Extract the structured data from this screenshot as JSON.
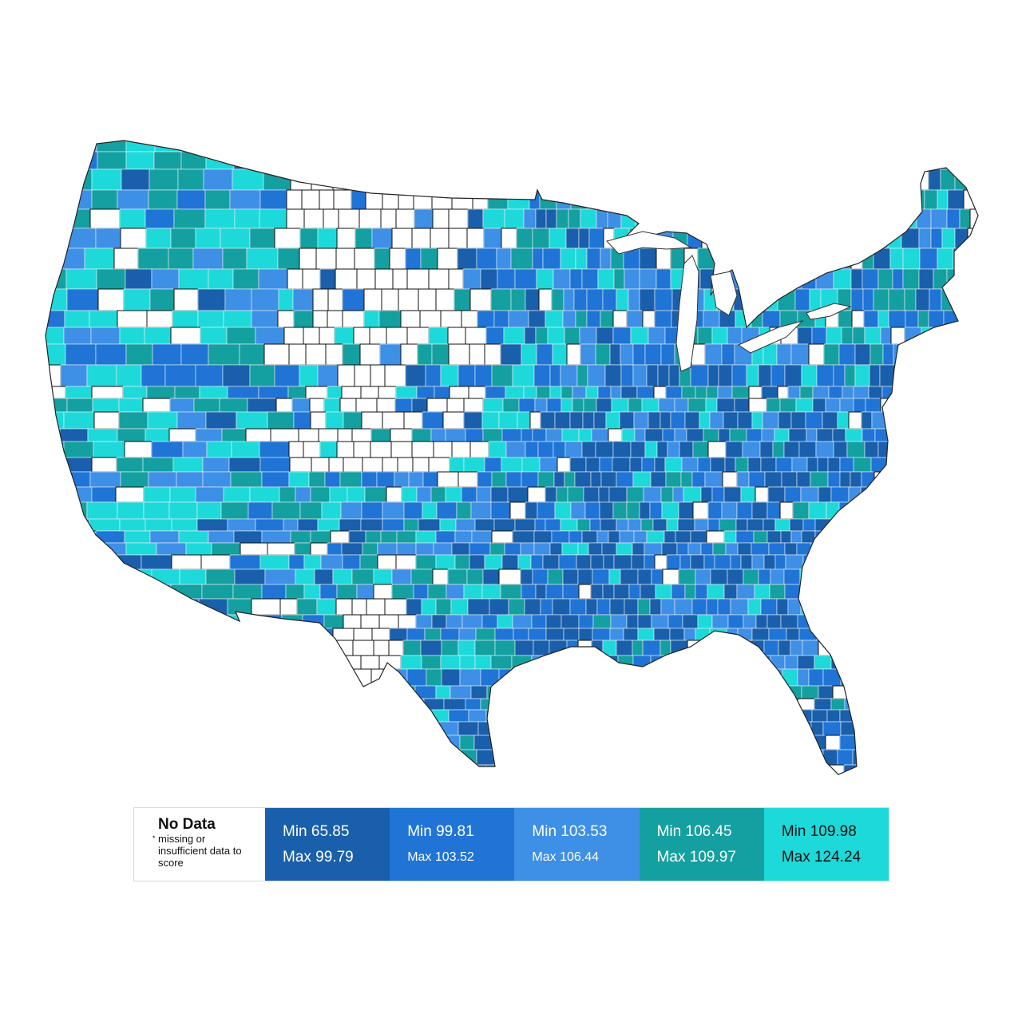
{
  "legend": {
    "no_data": {
      "title": "No Data",
      "marker": "*",
      "note": "missing or insufficient data to score",
      "color": "#ffffff"
    },
    "bins": [
      {
        "min_label": "Min 65.85",
        "max_label": "Max 99.79",
        "color": "#1a5fab",
        "text_color": "#ffffff"
      },
      {
        "min_label": "Min 99.81",
        "max_label": "Max 103.52",
        "color": "#1f74d6",
        "text_color": "#ffffff"
      },
      {
        "min_label": "Min 103.53",
        "max_label": "Max 106.44",
        "color": "#3e8fe6",
        "text_color": "#ffffff"
      },
      {
        "min_label": "Min 106.45",
        "max_label": "Max 109.97",
        "color": "#14a0a0",
        "text_color": "#ffffff"
      },
      {
        "min_label": "Min 109.98",
        "max_label": "Max 124.24",
        "color": "#1ed9d9",
        "text_color": "#111111"
      }
    ]
  },
  "map": {
    "subject": "contiguous United States counties",
    "no_data_stroke": "#111111",
    "county_stroke": "#e8f4f8"
  }
}
